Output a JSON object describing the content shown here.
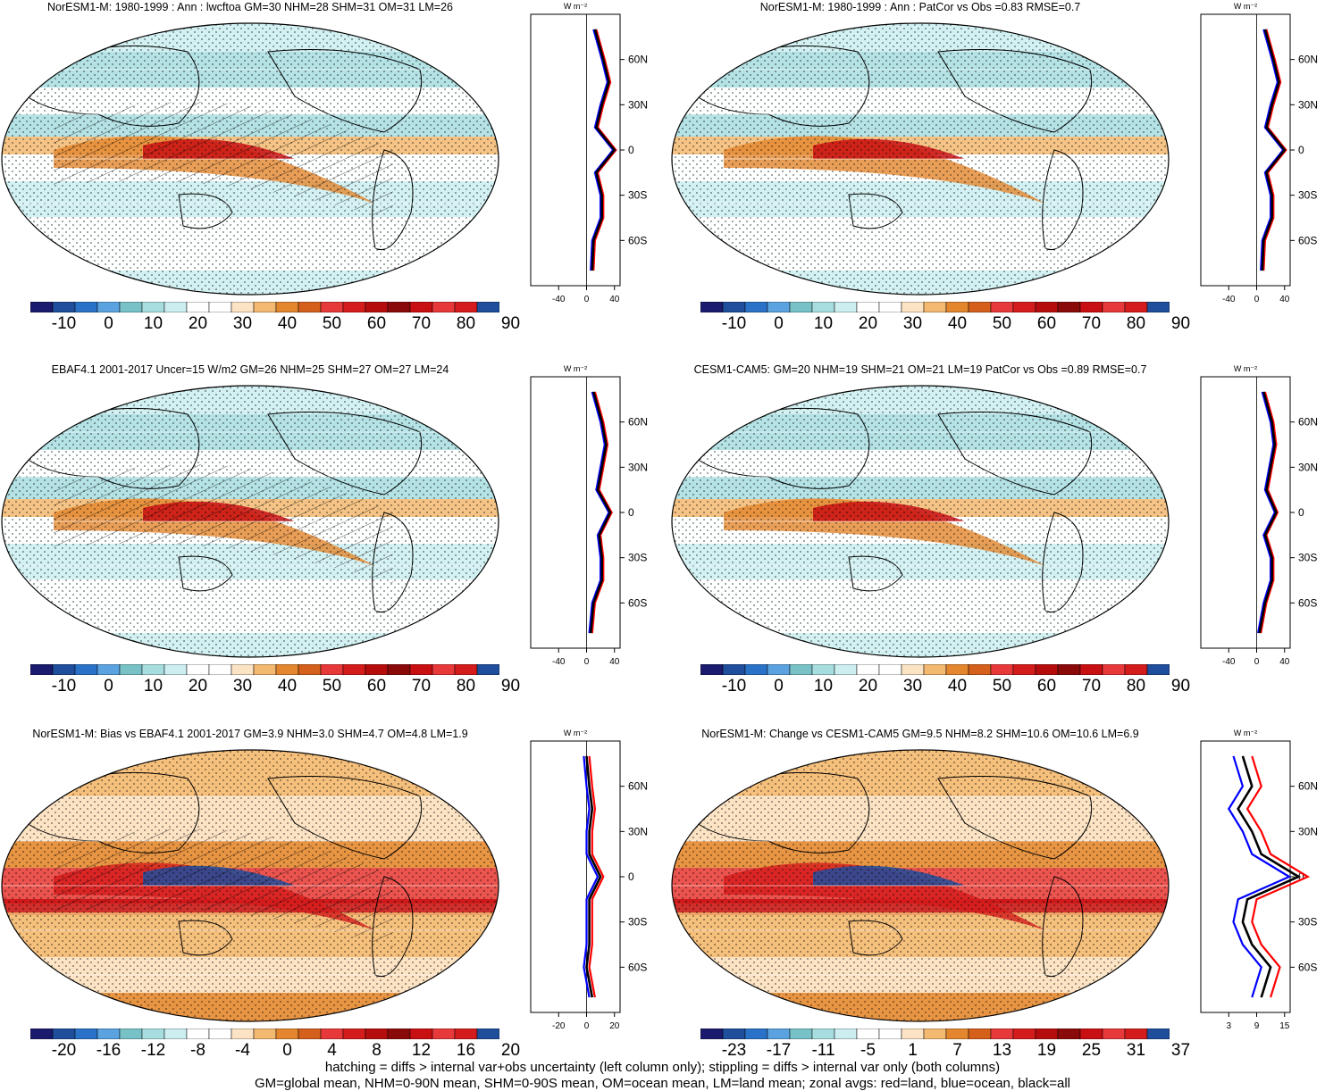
{
  "panels": [
    {
      "title": "NorESM1-M: 1980-1999 : Ann : lwcftoa GM=30 NHM=28 SHM=31 OM=31 LM=26",
      "colorbar_labels": [
        "-10",
        "0",
        "10",
        "20",
        "30",
        "40",
        "50",
        "60",
        "70",
        "80",
        "90"
      ],
      "colorbar_scheme": "abs",
      "zonal_xticks": [
        "-40",
        "0",
        "40"
      ],
      "zonal_unit": "W m⁻²",
      "hatching": true,
      "stippling": true
    },
    {
      "title": "NorESM1-M: 1980-1999 : Ann : PatCor vs Obs =0.83 RMSE=0.7",
      "colorbar_labels": [
        "-10",
        "0",
        "10",
        "20",
        "30",
        "40",
        "50",
        "60",
        "70",
        "80",
        "90"
      ],
      "colorbar_scheme": "abs",
      "zonal_xticks": [
        "-40",
        "0",
        "40"
      ],
      "zonal_unit": "W m⁻²",
      "hatching": false,
      "stippling": true
    },
    {
      "title": "EBAF4.1 2001-2017 Uncer=15 W/m2 GM=26 NHM=25 SHM=27 OM=27 LM=24",
      "colorbar_labels": [
        "-10",
        "0",
        "10",
        "20",
        "30",
        "40",
        "50",
        "60",
        "70",
        "80",
        "90"
      ],
      "colorbar_scheme": "abs",
      "zonal_xticks": [
        "-40",
        "0",
        "40"
      ],
      "zonal_unit": "W m⁻²",
      "hatching": true,
      "stippling": true
    },
    {
      "title": "CESM1-CAM5: GM=20 NHM=19 SHM=21 OM=21 LM=19 PatCor vs Obs =0.89 RMSE=0.7",
      "colorbar_labels": [
        "-10",
        "0",
        "10",
        "20",
        "30",
        "40",
        "50",
        "60",
        "70",
        "80",
        "90"
      ],
      "colorbar_scheme": "abs",
      "zonal_xticks": [
        "-40",
        "0",
        "40"
      ],
      "zonal_unit": "W m⁻²",
      "hatching": false,
      "stippling": true
    },
    {
      "title": "NorESM1-M: Bias vs EBAF4.1 2001-2017 GM=3.9 NHM=3.0 SHM=4.7 OM=4.8 LM=1.9",
      "colorbar_labels": [
        "-20",
        "-16",
        "-12",
        "-8",
        "-4",
        "0",
        "4",
        "8",
        "12",
        "16",
        "20"
      ],
      "colorbar_scheme": "diff",
      "zonal_xticks": [
        "-20",
        "0",
        "20"
      ],
      "zonal_unit": "W m⁻²",
      "hatching": true,
      "stippling": true
    },
    {
      "title": "NorESM1-M: Change vs CESM1-CAM5 GM=9.5 NHM=8.2 SHM=10.6 OM=10.6 LM=6.9",
      "colorbar_labels": [
        "-23",
        "-17",
        "-11",
        "-5",
        "1",
        "7",
        "13",
        "19",
        "25",
        "31",
        "37"
      ],
      "colorbar_scheme": "diff",
      "zonal_xticks": [
        "3",
        "9",
        "15"
      ],
      "zonal_unit": "W m⁻²",
      "hatching": false,
      "stippling": true
    }
  ],
  "latitude_ticks": [
    "60N",
    "30N",
    "0",
    "30S",
    "60S"
  ],
  "colors": {
    "abs_scale": [
      "#1a1a6e",
      "#1f4e9c",
      "#2a72c7",
      "#5aa3e0",
      "#78c2c7",
      "#a8dde0",
      "#cceef0",
      "#ffffff",
      "#ffffff",
      "#fbe3c4",
      "#f3b970",
      "#e3862d",
      "#d4601c",
      "#e8393a",
      "#d41c1c",
      "#b50d0d",
      "#8a0a0a",
      "#c80f12",
      "#e8393a",
      "#d41c1c",
      "#1f4e9c"
    ],
    "diff_scale": [
      "#1a1a6e",
      "#1f4e9c",
      "#2a72c7",
      "#5aa3e0",
      "#78c2c7",
      "#a8dde0",
      "#cceef0",
      "#ffffff",
      "#ffffff",
      "#fbe3c4",
      "#f3b970",
      "#e3862d",
      "#d4601c",
      "#e8393a",
      "#d41c1c",
      "#b50d0d",
      "#8a0a0a",
      "#c80f12",
      "#e8393a",
      "#d41c1c",
      "#1f4e9c"
    ],
    "land_line": "#ff0000",
    "ocean_line": "#0000ff",
    "all_line": "#000000"
  },
  "footer": {
    "line1": "hatching = diffs > internal var+obs uncertainty (left column only); stippling = diffs > internal var only (both columns)",
    "line2": "GM=global mean, NHM=0-90N mean, SHM=0-90S mean, OM=ocean mean, LM=land mean; zonal avgs: red=land, blue=ocean, black=all"
  },
  "chart_data": [
    {
      "type": "heatmap",
      "title": "NorESM1-M: 1980-1999 : Ann : lwcftoa GM=30 NHM=28 SHM=31 OM=31 LM=26",
      "colorbar": [
        -10,
        0,
        10,
        20,
        30,
        40,
        50,
        60,
        70,
        80,
        90
      ],
      "zonal_mean": {
        "lat": [
          -80,
          -60,
          -45,
          -30,
          -15,
          0,
          15,
          30,
          45,
          60,
          80
        ],
        "all": [
          8,
          10,
          22,
          22,
          14,
          40,
          14,
          22,
          32,
          24,
          12
        ]
      }
    },
    {
      "type": "heatmap",
      "title": "NorESM1-M: 1980-1999 : Ann : PatCor vs Obs =0.83 RMSE=0.7",
      "colorbar": [
        -10,
        0,
        10,
        20,
        30,
        40,
        50,
        60,
        70,
        80,
        90
      ],
      "zonal_mean": {
        "lat": [
          -80,
          -60,
          -45,
          -30,
          -15,
          0,
          15,
          30,
          45,
          60,
          80
        ],
        "all": [
          8,
          10,
          22,
          22,
          14,
          40,
          14,
          22,
          32,
          24,
          12
        ]
      }
    },
    {
      "type": "heatmap",
      "title": "EBAF4.1 2001-2017 Uncer=15 W/m2 GM=26 NHM=25 SHM=27 OM=27 LM=24",
      "colorbar": [
        -10,
        0,
        10,
        20,
        30,
        40,
        50,
        60,
        70,
        80,
        90
      ],
      "zonal_mean": {
        "lat": [
          -80,
          -60,
          -45,
          -30,
          -15,
          0,
          15,
          30,
          45,
          60,
          80
        ],
        "all": [
          6,
          10,
          22,
          22,
          18,
          34,
          16,
          22,
          28,
          22,
          10
        ]
      }
    },
    {
      "type": "heatmap",
      "title": "CESM1-CAM5: GM=20 NHM=19 SHM=21 OM=21 LM=19 PatCor vs Obs =0.89 RMSE=0.7",
      "colorbar": [
        -10,
        0,
        10,
        20,
        30,
        40,
        50,
        60,
        70,
        80,
        90
      ],
      "zonal_mean": {
        "lat": [
          -80,
          -60,
          -45,
          -30,
          -15,
          0,
          15,
          30,
          45,
          60,
          80
        ],
        "all": [
          4,
          12,
          22,
          22,
          12,
          28,
          14,
          20,
          26,
          22,
          10
        ]
      }
    },
    {
      "type": "heatmap",
      "title": "NorESM1-M: Bias vs EBAF4.1 2001-2017 GM=3.9 NHM=3.0 SHM=4.7 OM=4.8 LM=1.9",
      "colorbar": [
        -20,
        -16,
        -12,
        -8,
        -4,
        0,
        4,
        8,
        12,
        16,
        20
      ],
      "zonal_mean": {
        "lat": [
          -80,
          -60,
          -45,
          -30,
          -15,
          0,
          15,
          30,
          45,
          60,
          80
        ],
        "all": [
          4,
          0,
          2,
          2,
          2,
          10,
          2,
          2,
          4,
          2,
          0
        ]
      }
    },
    {
      "type": "heatmap",
      "title": "NorESM1-M: Change vs CESM1-CAM5 GM=9.5 NHM=8.2 SHM=10.6 OM=10.6 LM=6.9",
      "colorbar": [
        -23,
        -17,
        -11,
        -5,
        1,
        7,
        13,
        19,
        25,
        31,
        37
      ],
      "zonal_mean": {
        "lat": [
          -80,
          -60,
          -45,
          -30,
          -15,
          0,
          15,
          30,
          45,
          60,
          80
        ],
        "all": [
          10,
          12,
          8,
          6,
          7,
          18,
          10,
          8,
          5,
          8,
          6
        ]
      }
    }
  ]
}
